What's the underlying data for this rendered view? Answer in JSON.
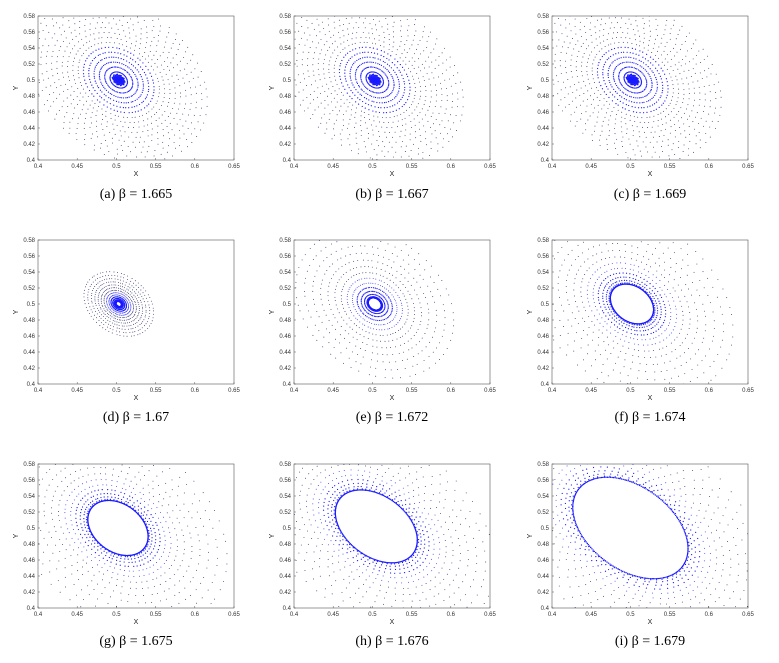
{
  "chart_data": [
    {
      "type": "scatter",
      "caption": "(a) β = 1.665",
      "label": "(a)",
      "beta": "1.665",
      "xlabel": "X",
      "ylabel": "Y",
      "xlim": [
        0.4,
        0.65
      ],
      "ylim": [
        0.4,
        0.58
      ],
      "xticks": [
        "0.4",
        "0.45",
        "0.5",
        "0.55",
        "0.6",
        "0.65"
      ],
      "yticks": [
        "0.4",
        "0.42",
        "0.44",
        "0.46",
        "0.48",
        "0.5",
        "0.52",
        "0.54",
        "0.56",
        "0.58"
      ],
      "center": [
        0.503,
        0.5
      ],
      "core_radius": [
        0.0,
        0.0
      ],
      "tilt_deg": -35,
      "swirl_strength": 0.45,
      "grid": false,
      "point_color": "#1a1aff"
    },
    {
      "type": "scatter",
      "caption": "(b) β = 1.667",
      "label": "(b)",
      "beta": "1.667",
      "xlabel": "X",
      "ylabel": "Y",
      "xlim": [
        0.4,
        0.65
      ],
      "ylim": [
        0.4,
        0.58
      ],
      "xticks": [
        "0.4",
        "0.45",
        "0.5",
        "0.55",
        "0.6",
        "0.65"
      ],
      "yticks": [
        "0.4",
        "0.42",
        "0.44",
        "0.46",
        "0.48",
        "0.5",
        "0.52",
        "0.54",
        "0.56",
        "0.58"
      ],
      "center": [
        0.503,
        0.5
      ],
      "core_radius": [
        0.0,
        0.0
      ],
      "tilt_deg": -35,
      "swirl_strength": 0.5,
      "grid": false,
      "point_color": "#1a1aff"
    },
    {
      "type": "scatter",
      "caption": "(c) β = 1.669",
      "label": "(c)",
      "beta": "1.669",
      "xlabel": "X",
      "ylabel": "Y",
      "xlim": [
        0.4,
        0.65
      ],
      "ylim": [
        0.4,
        0.58
      ],
      "xticks": [
        "0.4",
        "0.45",
        "0.5",
        "0.55",
        "0.6",
        "0.65"
      ],
      "yticks": [
        "0.4",
        "0.42",
        "0.44",
        "0.46",
        "0.48",
        "0.5",
        "0.52",
        "0.54",
        "0.56",
        "0.58"
      ],
      "center": [
        0.503,
        0.5
      ],
      "core_radius": [
        0.0,
        0.0
      ],
      "tilt_deg": -35,
      "swirl_strength": 0.55,
      "grid": false,
      "point_color": "#1a1aff"
    },
    {
      "type": "scatter",
      "caption": "(d) β = 1.67",
      "label": "(d)",
      "beta": "1.67",
      "xlabel": "X",
      "ylabel": "Y",
      "xlim": [
        0.4,
        0.65
      ],
      "ylim": [
        0.4,
        0.58
      ],
      "xticks": [
        "0.4",
        "0.45",
        "0.5",
        "0.55",
        "0.6",
        "0.65"
      ],
      "yticks": [
        "0.4",
        "0.42",
        "0.44",
        "0.46",
        "0.48",
        "0.5",
        "0.52",
        "0.54",
        "0.56",
        "0.58"
      ],
      "center": [
        0.503,
        0.5
      ],
      "core_radius": [
        0.004,
        0.003
      ],
      "tilt_deg": -35,
      "swirl_strength": 0.6,
      "grid": false,
      "point_color": "#1a1aff"
    },
    {
      "type": "scatter",
      "caption": "(e) β = 1.672",
      "label": "(e)",
      "beta": "1.672",
      "xlabel": "X",
      "ylabel": "Y",
      "xlim": [
        0.4,
        0.65
      ],
      "ylim": [
        0.4,
        0.58
      ],
      "xticks": [
        "0.4",
        "0.45",
        "0.5",
        "0.55",
        "0.6",
        "0.65"
      ],
      "yticks": [
        "0.4",
        "0.42",
        "0.44",
        "0.46",
        "0.48",
        "0.5",
        "0.52",
        "0.54",
        "0.56",
        "0.58"
      ],
      "center": [
        0.503,
        0.5
      ],
      "core_radius": [
        0.009,
        0.007
      ],
      "tilt_deg": -35,
      "swirl_strength": 0.65,
      "grid": false,
      "point_color": "#1a1aff"
    },
    {
      "type": "scatter",
      "caption": "(f) β = 1.674",
      "label": "(f)",
      "beta": "1.674",
      "xlabel": "X",
      "ylabel": "Y",
      "xlim": [
        0.4,
        0.65
      ],
      "ylim": [
        0.4,
        0.58
      ],
      "xticks": [
        "0.4",
        "0.45",
        "0.5",
        "0.55",
        "0.6",
        "0.65"
      ],
      "yticks": [
        "0.4",
        "0.42",
        "0.44",
        "0.46",
        "0.48",
        "0.5",
        "0.52",
        "0.54",
        "0.56",
        "0.58"
      ],
      "center": [
        0.502,
        0.5
      ],
      "core_radius": [
        0.03,
        0.022
      ],
      "tilt_deg": -35,
      "swirl_strength": 0.7,
      "grid": false,
      "point_color": "#1a1aff"
    },
    {
      "type": "scatter",
      "caption": "(g) β = 1.675",
      "label": "(g)",
      "beta": "1.675",
      "xlabel": "X",
      "ylabel": "Y",
      "xlim": [
        0.4,
        0.65
      ],
      "ylim": [
        0.4,
        0.58
      ],
      "xticks": [
        "0.4",
        "0.45",
        "0.5",
        "0.55",
        "0.6",
        "0.65"
      ],
      "yticks": [
        "0.4",
        "0.42",
        "0.44",
        "0.46",
        "0.48",
        "0.5",
        "0.52",
        "0.54",
        "0.56",
        "0.58"
      ],
      "center": [
        0.502,
        0.5
      ],
      "core_radius": [
        0.042,
        0.03
      ],
      "tilt_deg": -35,
      "swirl_strength": 0.75,
      "grid": false,
      "point_color": "#1a1aff"
    },
    {
      "type": "scatter",
      "caption": "(h) β = 1.676",
      "label": "(h)",
      "beta": "1.676",
      "xlabel": "X",
      "ylabel": "Y",
      "xlim": [
        0.4,
        0.65
      ],
      "ylim": [
        0.4,
        0.58
      ],
      "xticks": [
        "0.4",
        "0.45",
        "0.5",
        "0.55",
        "0.6",
        "0.65"
      ],
      "yticks": [
        "0.4",
        "0.42",
        "0.44",
        "0.46",
        "0.48",
        "0.5",
        "0.52",
        "0.54",
        "0.56",
        "0.58"
      ],
      "center": [
        0.505,
        0.502
      ],
      "core_radius": [
        0.058,
        0.038
      ],
      "tilt_deg": -35,
      "swirl_strength": 0.8,
      "grid": false,
      "point_color": "#1a1aff"
    },
    {
      "type": "scatter",
      "caption": "(i) β = 1.679",
      "label": "(i)",
      "beta": "1.679",
      "xlabel": "X",
      "ylabel": "Y",
      "xlim": [
        0.4,
        0.65
      ],
      "ylim": [
        0.4,
        0.58
      ],
      "xticks": [
        "0.4",
        "0.45",
        "0.5",
        "0.55",
        "0.6",
        "0.65"
      ],
      "yticks": [
        "0.4",
        "0.42",
        "0.44",
        "0.46",
        "0.48",
        "0.5",
        "0.52",
        "0.54",
        "0.56",
        "0.58"
      ],
      "center": [
        0.5,
        0.5
      ],
      "core_radius": [
        0.082,
        0.052
      ],
      "tilt_deg": -35,
      "swirl_strength": 0.85,
      "grid": false,
      "point_color": "#1a1aff"
    }
  ]
}
